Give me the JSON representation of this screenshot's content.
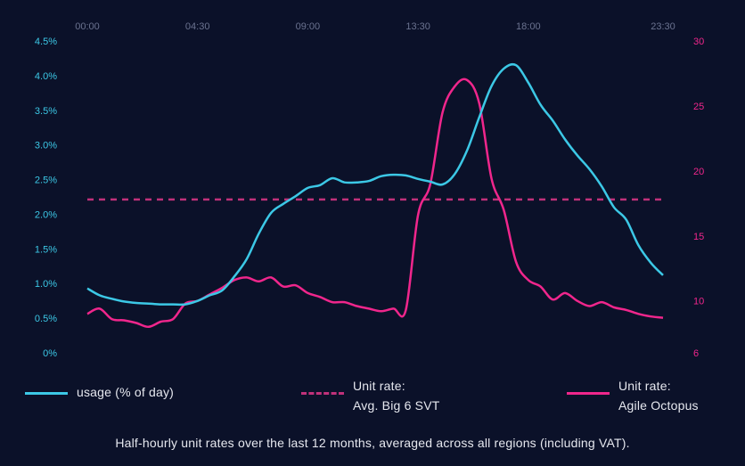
{
  "colors": {
    "background": "#0b1129",
    "usage": "#3cc8e6",
    "agile": "#f0268c",
    "big6": "#c0317a",
    "left_axis_text": "#3cc8e6",
    "right_axis_text": "#f0268c",
    "top_axis_text": "#6b7390",
    "text": "#e6e8ef"
  },
  "chart_data": {
    "type": "line",
    "x_ticks": [
      "00:00",
      "04:30",
      "09:00",
      "13:30",
      "18:00",
      "23:30"
    ],
    "y_left": {
      "ticks": [
        "0%",
        "0.5%",
        "1.0%",
        "1.5%",
        "2.0%",
        "2.5%",
        "3.0%",
        "3.5%",
        "4.0%",
        "4.5%"
      ],
      "range": [
        0,
        4.5
      ]
    },
    "y_right": {
      "ticks": [
        "6",
        "10",
        "15",
        "20",
        "25",
        "30"
      ],
      "range": [
        6,
        30
      ]
    },
    "series": [
      {
        "name": "usage (% of day)",
        "axis": "left",
        "style": "solid",
        "x": [
          "00:00",
          "00:30",
          "01:00",
          "01:30",
          "02:00",
          "02:30",
          "03:00",
          "03:30",
          "04:00",
          "04:30",
          "05:00",
          "05:30",
          "06:00",
          "06:30",
          "07:00",
          "07:30",
          "08:00",
          "08:30",
          "09:00",
          "09:30",
          "10:00",
          "10:30",
          "11:00",
          "11:30",
          "12:00",
          "12:30",
          "13:00",
          "13:30",
          "14:00",
          "14:30",
          "15:00",
          "15:30",
          "16:00",
          "16:30",
          "17:00",
          "17:30",
          "18:00",
          "18:30",
          "19:00",
          "19:30",
          "20:00",
          "20:30",
          "21:00",
          "21:30",
          "22:00",
          "22:30",
          "23:00",
          "23:30"
        ],
        "values": [
          0.93,
          0.83,
          0.78,
          0.74,
          0.72,
          0.71,
          0.7,
          0.7,
          0.7,
          0.75,
          0.83,
          0.9,
          1.1,
          1.35,
          1.72,
          2.02,
          2.15,
          2.26,
          2.38,
          2.42,
          2.52,
          2.46,
          2.46,
          2.48,
          2.55,
          2.57,
          2.56,
          2.51,
          2.47,
          2.43,
          2.58,
          2.92,
          3.4,
          3.85,
          4.1,
          4.15,
          3.9,
          3.58,
          3.35,
          3.08,
          2.85,
          2.65,
          2.4,
          2.1,
          1.92,
          1.55,
          1.3,
          1.12
        ]
      },
      {
        "name": "Avg. Big 6 SVT",
        "legend_label": [
          "Unit rate:",
          "Avg. Big 6 SVT"
        ],
        "axis": "right",
        "style": "dashed",
        "value": 17.8
      },
      {
        "name": "Agile Octopus",
        "legend_label": [
          "Unit rate:",
          "Agile Octopus"
        ],
        "axis": "right",
        "style": "solid",
        "x": [
          "00:00",
          "00:30",
          "01:00",
          "01:30",
          "02:00",
          "02:30",
          "03:00",
          "03:30",
          "04:00",
          "04:30",
          "05:00",
          "05:30",
          "06:00",
          "06:30",
          "07:00",
          "07:30",
          "08:00",
          "08:30",
          "09:00",
          "09:30",
          "10:00",
          "10:30",
          "11:00",
          "11:30",
          "12:00",
          "12:30",
          "13:00",
          "13:30",
          "14:00",
          "14:30",
          "15:00",
          "15:30",
          "16:00",
          "16:30",
          "17:00",
          "17:30",
          "18:00",
          "18:30",
          "19:00",
          "19:30",
          "20:00",
          "20:30",
          "21:00",
          "21:30",
          "22:00",
          "22:30",
          "23:00",
          "23:30"
        ],
        "values": [
          9.0,
          9.4,
          8.6,
          8.5,
          8.3,
          8.0,
          8.4,
          8.6,
          9.8,
          10.0,
          10.5,
          11.0,
          11.6,
          11.8,
          11.5,
          11.8,
          11.1,
          11.2,
          10.6,
          10.3,
          9.9,
          9.9,
          9.6,
          9.4,
          9.2,
          9.4,
          9.3,
          16.6,
          19.0,
          24.5,
          26.5,
          27.0,
          25.2,
          19.4,
          17.0,
          13.0,
          11.6,
          11.1,
          10.1,
          10.6,
          10.0,
          9.6,
          9.9,
          9.5,
          9.3,
          9.0,
          8.8,
          8.7
        ]
      }
    ],
    "caption": "Half-hourly unit rates over the last 12 months, averaged across all regions (including VAT)."
  }
}
